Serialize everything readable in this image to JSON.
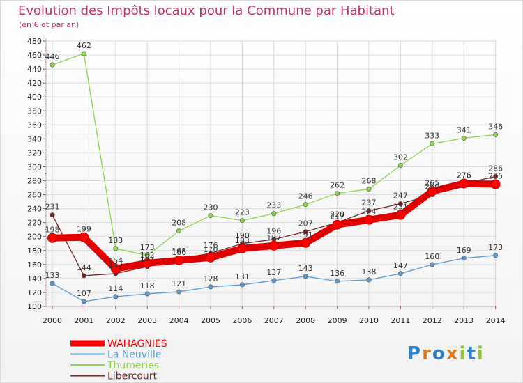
{
  "header": {
    "title": "Evolution des Impôts locaux pour la Commune par Habitant",
    "subtitle": "(en € et par an)"
  },
  "logo": {
    "text": "Proxiti"
  },
  "chart_data": {
    "type": "line",
    "title": "Evolution des Impôts locaux pour la Commune par Habitant",
    "subtitle": "(en € et par an)",
    "x": [
      "2000",
      "2001",
      "2002",
      "2003",
      "2004",
      "2005",
      "2006",
      "2007",
      "2008",
      "2009",
      "2010",
      "2011",
      "2012",
      "2013",
      "2014"
    ],
    "ylim": [
      100,
      480
    ],
    "yticks": [
      100,
      120,
      140,
      160,
      180,
      200,
      220,
      240,
      260,
      280,
      300,
      320,
      340,
      360,
      380,
      400,
      420,
      440,
      460,
      480
    ],
    "grid": true,
    "legend_position": "bottom-left",
    "series": [
      {
        "name": "WAHAGNIES",
        "color": "#ff0000",
        "values": [
          198,
          199,
          154,
          162,
          166,
          170,
          183,
          187,
          191,
          217,
          224,
          231,
          265,
          276,
          275
        ]
      },
      {
        "name": "La Neuville",
        "color": "#5d9bd3",
        "values": [
          133,
          107,
          114,
          118,
          121,
          128,
          131,
          137,
          143,
          136,
          138,
          147,
          160,
          169,
          173
        ]
      },
      {
        "name": "Thumeries",
        "color": "#8fd34f",
        "values": [
          446,
          462,
          183,
          173,
          208,
          230,
          223,
          233,
          246,
          262,
          268,
          302,
          333,
          341,
          346
        ]
      },
      {
        "name": "Libercourt",
        "color": "#7a2526",
        "values": [
          231,
          144,
          147,
          157,
          168,
          176,
          190,
          196,
          207,
          220,
          237,
          247,
          260,
          276,
          286
        ]
      }
    ]
  }
}
